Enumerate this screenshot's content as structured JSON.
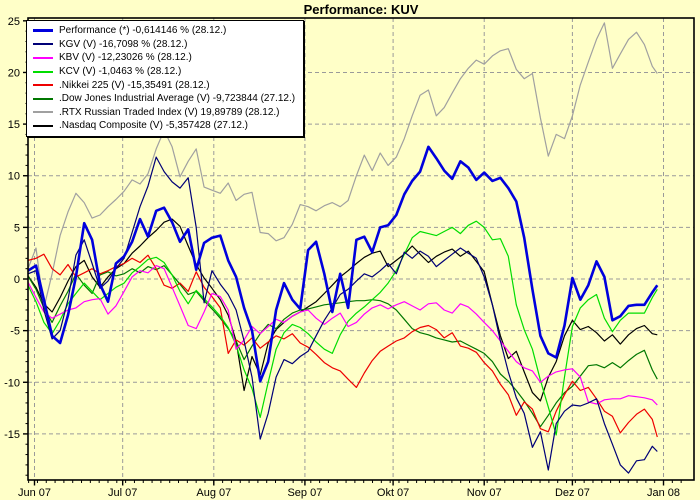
{
  "window": {
    "title": "Performance: KUV"
  },
  "chart_data": {
    "type": "line",
    "title": "Performance: KUV",
    "background_color": "#ffffc8",
    "grid_color": "#9a9a9a",
    "axis_color": "#000000",
    "legend_position": "top-left",
    "x_axis": {
      "unit": "days since 2007-06-01",
      "tick_labels": [
        "Jun 07",
        "Jul 07",
        "Aug 07",
        "Sep 07",
        "Okt 07",
        "Nov 07",
        "Dez 07",
        "Jan 08"
      ],
      "tick_days": [
        0,
        30,
        61,
        92,
        122,
        153,
        183,
        214
      ],
      "range_days": [
        -2.2,
        224
      ]
    },
    "y_axis": {
      "ticks": [
        25,
        20,
        15,
        10,
        5,
        0,
        -5,
        -10,
        -15
      ],
      "gridlines": [
        20,
        15,
        10,
        5,
        0,
        -5,
        -10,
        -15
      ],
      "range": [
        -19.4,
        25.3
      ]
    },
    "x_days": [
      -2.2,
      0.5,
      3.2,
      6,
      8.7,
      11.4,
      14.1,
      16.9,
      19.6,
      22.3,
      25,
      27.7,
      30.5,
      33.2,
      35.9,
      38.6,
      41.4,
      44.1,
      46.8,
      49.5,
      52.3,
      55,
      57.7,
      60.4,
      63.2,
      65.9,
      68.6,
      71.3,
      74,
      76.8,
      79.5,
      82.2,
      84.9,
      87.7,
      90.4,
      93.1,
      95.8,
      98.6,
      101.3,
      104,
      106.7,
      109.5,
      112.2,
      114.9,
      117.6,
      120.3,
      123.1,
      125.8,
      128.5,
      131.2,
      134,
      136.7,
      139.4,
      142.1,
      144.9,
      147.6,
      150.3,
      153,
      155.8,
      158.5,
      161.2,
      163.9,
      166.6,
      169.4,
      172.1,
      174.8,
      177.5,
      180.3,
      183,
      185.7,
      188.4,
      191.2,
      193.9,
      196.6,
      199.3,
      202.1,
      204.8,
      207.5,
      210.2,
      211.9
    ],
    "series": [
      {
        "name": "Performance",
        "legend_label": "Performance (*) -0,614146 % (28.12.)",
        "color": "#0000dd",
        "width": 2.6,
        "last_value": -0.614146,
        "last_date": "28.12.",
        "values": [
          0.8,
          1.3,
          -2.0,
          -5.5,
          -6.2,
          -3.5,
          0.2,
          5.4,
          3.8,
          -0.5,
          -2.2,
          1.5,
          2.2,
          3.6,
          5.8,
          4.1,
          6.6,
          6.9,
          5.5,
          3.6,
          4.8,
          0.9,
          3.5,
          4.0,
          4.2,
          1.8,
          0.2,
          -2.8,
          -5.0,
          -9.9,
          -8.0,
          -3.0,
          -0.4,
          -2.0,
          -2.9,
          2.8,
          3.6,
          0.5,
          -3.2,
          0.5,
          -2.8,
          3.8,
          4.1,
          2.6,
          5.0,
          5.2,
          6.2,
          8.2,
          9.5,
          10.4,
          12.8,
          11.7,
          10.5,
          9.7,
          11.4,
          10.8,
          9.6,
          10.3,
          9.5,
          9.8,
          8.8,
          7.5,
          4.0,
          -1.0,
          -5.5,
          -7.2,
          -7.6,
          -4.5,
          0.1,
          -2.0,
          -0.6,
          1.7,
          0.2,
          -4.0,
          -3.6,
          -2.6,
          -2.5,
          -2.5,
          -1.3,
          -0.6
        ]
      },
      {
        "name": "KGV",
        "legend_label": "KGV (V) -16,7098 % (28.12.)",
        "color": "#000077",
        "width": 1.2,
        "last_value": -16.7098,
        "last_date": "28.12.",
        "values": [
          0.5,
          0.8,
          -3.0,
          -5.8,
          -5.0,
          -2.0,
          2.3,
          3.8,
          1.5,
          -0.9,
          -0.2,
          1.0,
          2.0,
          4.5,
          7.0,
          9.0,
          11.8,
          10.4,
          9.4,
          8.8,
          9.8,
          5.0,
          -2.3,
          0.8,
          -0.5,
          -1.5,
          -3.0,
          -6.0,
          -9.5,
          -15.5,
          -13.0,
          -9.5,
          -7.8,
          -8.2,
          -7.5,
          -7.0,
          -5.5,
          -4.0,
          -2.8,
          -1.5,
          -1.0,
          -0.2,
          0.5,
          0.2,
          0.8,
          1.5,
          0.5,
          2.6,
          2.0,
          2.7,
          2.2,
          1.2,
          1.8,
          2.4,
          3.0,
          2.5,
          2.0,
          0.2,
          -2.5,
          -6.0,
          -9.0,
          -11.5,
          -13.0,
          -16.3,
          -14.8,
          -18.5,
          -14.0,
          -12.8,
          -12.2,
          -12.3,
          -12.0,
          -11.6,
          -14.0,
          -16.0,
          -18.0,
          -18.8,
          -17.6,
          -17.5,
          -16.2,
          -16.7
        ]
      },
      {
        "name": "KBV",
        "legend_label": "KBV (V) -12,23026 % (28.12.)",
        "color": "#ff00ff",
        "width": 1.2,
        "last_value": -12.23026,
        "last_date": "28.12.",
        "values": [
          -0.3,
          -1.8,
          -3.2,
          -3.8,
          -3.4,
          -3.0,
          -2.8,
          -2.2,
          -2.0,
          -1.9,
          -3.4,
          -2.6,
          -1.2,
          0.2,
          0.8,
          0.6,
          1.3,
          1.0,
          -0.8,
          -2.6,
          -4.5,
          -4.8,
          -3.2,
          -1.4,
          -1.7,
          -3.0,
          -6.8,
          -5.9,
          -4.6,
          -5.3,
          -4.6,
          -3.9,
          -4.2,
          -3.6,
          -3.2,
          -3.0,
          -3.8,
          -4.4,
          -3.8,
          -3.3,
          -4.6,
          -4.2,
          -3.4,
          -2.8,
          -2.5,
          -2.9,
          -2.5,
          -2.2,
          -2.6,
          -3.0,
          -2.4,
          -2.3,
          -3.0,
          -3.3,
          -2.4,
          -2.7,
          -3.4,
          -4.2,
          -5.0,
          -6.0,
          -7.0,
          -8.0,
          -8.6,
          -8.9,
          -10.0,
          -9.4,
          -9.0,
          -8.8,
          -8.7,
          -9.5,
          -11.9,
          -12.1,
          -11.7,
          -11.6,
          -11.6,
          -11.3,
          -11.4,
          -11.5,
          -11.7,
          -12.2
        ]
      },
      {
        "name": "KCV",
        "legend_label": "KCV (V) -1,0463 % (28.12.)",
        "color": "#00dd00",
        "width": 1.2,
        "last_value": -1.0463,
        "last_date": "28.12.",
        "values": [
          -0.6,
          -2.2,
          -4.2,
          -5.3,
          -4.0,
          -2.4,
          -1.4,
          -0.4,
          -1.2,
          -2.0,
          -1.4,
          -0.8,
          -0.4,
          0.6,
          1.2,
          1.9,
          2.1,
          1.6,
          0.4,
          -1.2,
          -2.4,
          -1.1,
          -1.9,
          -2.7,
          -3.6,
          -4.7,
          -6.4,
          -8.8,
          -10.6,
          -13.4,
          -10.0,
          -6.8,
          -5.2,
          -4.4,
          -4.7,
          -5.3,
          -6.1,
          -6.8,
          -7.2,
          -5.4,
          -4.1,
          -3.3,
          -2.7,
          -2.0,
          -1.3,
          -0.4,
          0.8,
          2.4,
          4.0,
          4.6,
          4.4,
          4.2,
          4.6,
          5.0,
          4.4,
          5.2,
          5.6,
          5.0,
          3.8,
          3.9,
          2.2,
          -2.5,
          -4.9,
          -6.8,
          -9.8,
          -12.4,
          -15.1,
          -9.5,
          -4.6,
          -2.8,
          -2.0,
          -1.5,
          -3.8,
          -5.1,
          -4.0,
          -3.3,
          -3.3,
          -3.3,
          -1.8,
          -1.0
        ]
      },
      {
        "name": "Nikkei 225",
        "legend_label": ".Nikkei 225 (V) -15,35491 (28.12.)",
        "color": "#ee0000",
        "width": 1.2,
        "last_value": -15.35491,
        "last_date": "28.12.",
        "values": [
          1.8,
          2.0,
          2.4,
          1.0,
          0.4,
          1.4,
          0.2,
          0.6,
          1.0,
          0.5,
          0.8,
          1.2,
          1.5,
          2.0,
          1.6,
          2.3,
          1.0,
          -0.6,
          -0.9,
          -0.4,
          -1.2,
          0.7,
          -0.8,
          -1.7,
          -2.8,
          -7.2,
          -5.9,
          -6.4,
          -5.7,
          -6.7,
          -6.1,
          -5.5,
          -5.8,
          -5.3,
          -6.2,
          -6.6,
          -7.3,
          -8.1,
          -8.6,
          -8.9,
          -9.7,
          -10.5,
          -9.1,
          -7.9,
          -7.0,
          -6.5,
          -6.0,
          -5.7,
          -5.1,
          -4.7,
          -4.5,
          -4.9,
          -5.7,
          -5.2,
          -6.5,
          -6.7,
          -7.1,
          -8.1,
          -8.9,
          -10.2,
          -11.2,
          -13.2,
          -11.9,
          -12.6,
          -14.5,
          -14.8,
          -12.8,
          -11.2,
          -9.9,
          -10.8,
          -10.5,
          -11.6,
          -12.8,
          -13.3,
          -14.9,
          -13.9,
          -13.1,
          -12.6,
          -13.6,
          -15.3
        ]
      },
      {
        "name": "Dow Jones Industrial Average",
        "legend_label": ".Dow Jones Industrial Average (V) -9,723844 (27.12.)",
        "color": "#007700",
        "width": 1.2,
        "last_value": -9.723844,
        "last_date": "27.12.",
        "values": [
          0.3,
          -1.0,
          -2.8,
          -4.2,
          -2.6,
          -1.2,
          0.5,
          -0.6,
          -1.4,
          0.4,
          0.7,
          0.3,
          0.5,
          1.0,
          0.6,
          1.2,
          0.9,
          1.3,
          0.4,
          -0.5,
          -1.5,
          -1.2,
          -2.1,
          -2.9,
          -3.8,
          -4.8,
          -6.0,
          -7.8,
          -6.5,
          -5.3,
          -4.4,
          -4.8,
          -3.9,
          -3.3,
          -3.0,
          -2.9,
          -2.7,
          -2.5,
          -2.4,
          -2.3,
          -2.2,
          -2.1,
          -2.1,
          -2.0,
          -2.1,
          -2.4,
          -3.0,
          -3.9,
          -4.8,
          -5.2,
          -5.4,
          -5.7,
          -5.9,
          -6.1,
          -6.0,
          -6.4,
          -6.8,
          -7.2,
          -8.0,
          -9.2,
          -9.9,
          -10.8,
          -11.8,
          -13.0,
          -14.3,
          -13.2,
          -12.0,
          -11.0,
          -10.4,
          -9.4,
          -8.4,
          -8.3,
          -8.6,
          -8.1,
          -8.6,
          -7.9,
          -7.3,
          -6.9,
          -8.8,
          -9.7
        ]
      },
      {
        "name": "RTX Russian Traded Index",
        "legend_label": ".RTX Russian Traded Index (V) 19,89789 (28.12.)",
        "color": "#a0a0a0",
        "width": 1.2,
        "last_value": 19.89789,
        "last_date": "28.12.",
        "values": [
          1.0,
          3.0,
          -2.8,
          0.5,
          4.2,
          6.5,
          8.3,
          7.4,
          5.9,
          6.2,
          7.0,
          7.7,
          8.5,
          9.6,
          9.2,
          10.2,
          12.6,
          14.4,
          12.8,
          9.9,
          11.4,
          12.6,
          8.9,
          8.6,
          8.3,
          9.3,
          7.6,
          8.2,
          8.4,
          4.5,
          4.4,
          3.7,
          4.0,
          5.3,
          7.2,
          7.0,
          6.6,
          7.1,
          7.4,
          7.0,
          7.6,
          10.0,
          12.0,
          10.5,
          12.2,
          11.0,
          11.8,
          13.6,
          15.8,
          17.8,
          18.3,
          15.8,
          16.6,
          18.0,
          19.4,
          20.4,
          21.2,
          20.8,
          21.6,
          22.1,
          22.3,
          20.3,
          19.4,
          19.9,
          15.6,
          11.9,
          14.0,
          13.6,
          15.8,
          18.8,
          21.0,
          23.2,
          24.8,
          20.4,
          21.8,
          23.2,
          23.9,
          22.7,
          20.6,
          19.9
        ]
      },
      {
        "name": "Nasdaq Composite",
        "legend_label": ".Nasdaq Composite (V) -5,357428 (27.12.)",
        "color": "#000000",
        "width": 1.2,
        "last_value": -5.357428,
        "last_date": "27.12.",
        "values": [
          0.3,
          -0.8,
          -2.4,
          -3.2,
          -1.8,
          -0.2,
          1.2,
          1.8,
          0.2,
          -0.8,
          0.2,
          1.0,
          1.5,
          2.5,
          3.2,
          4.0,
          4.7,
          5.5,
          5.8,
          5.1,
          3.2,
          1.4,
          0.1,
          -0.9,
          -2.0,
          -3.5,
          -6.0,
          -10.8,
          -7.5,
          -9.3,
          -6.2,
          -4.9,
          -4.2,
          -3.6,
          -3.2,
          -2.7,
          -2.2,
          -1.4,
          -0.6,
          0.2,
          0.8,
          1.5,
          2.1,
          2.5,
          2.7,
          1.2,
          1.8,
          2.4,
          3.2,
          2.4,
          1.6,
          2.2,
          2.6,
          2.9,
          2.2,
          2.7,
          1.7,
          0.7,
          -2.5,
          -5.5,
          -7.7,
          -7.0,
          -9.0,
          -11.0,
          -11.8,
          -9.5,
          -8.0,
          -5.5,
          -4.0,
          -4.9,
          -4.6,
          -5.2,
          -6.0,
          -5.4,
          -6.3,
          -5.4,
          -4.8,
          -4.5,
          -5.3,
          -5.4
        ]
      }
    ]
  }
}
